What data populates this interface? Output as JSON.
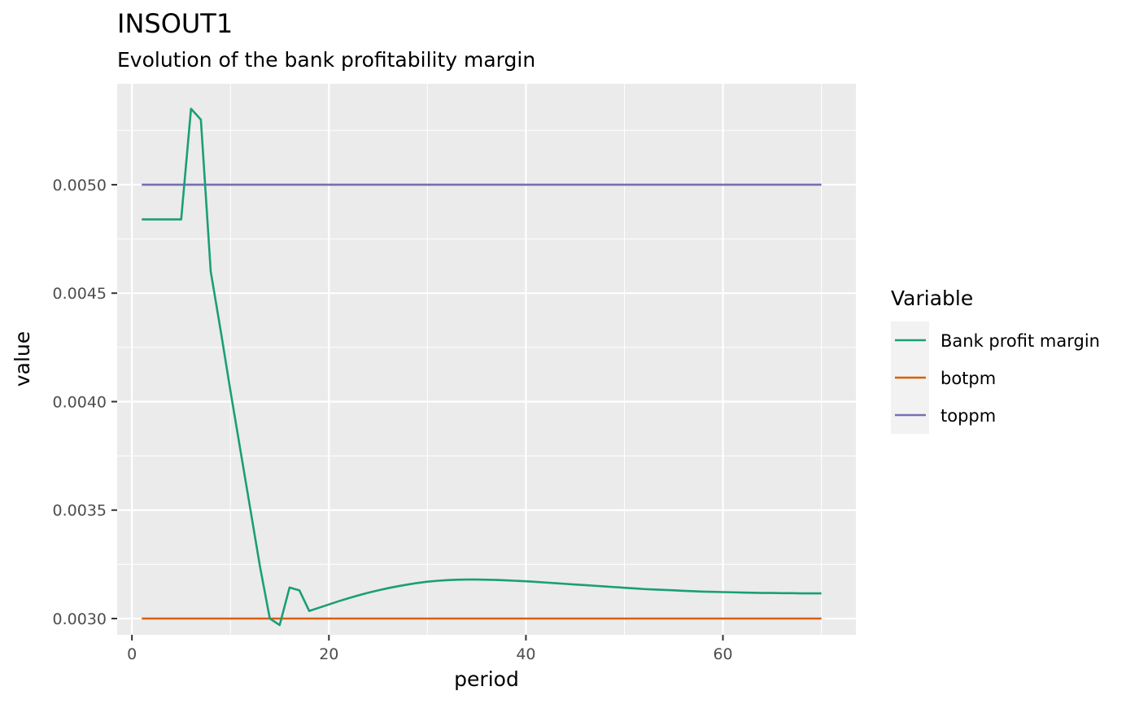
{
  "chart_data": {
    "type": "line",
    "title": "INSOUT1",
    "subtitle": "Evolution of the bank profitability margin",
    "xlabel": "period",
    "ylabel": "value",
    "xlim": [
      -1.5,
      73.5
    ],
    "ylim": [
      0.002925,
      0.005465
    ],
    "x_ticks": [
      0,
      20,
      40,
      60
    ],
    "x_tick_labels": [
      "0",
      "20",
      "40",
      "60"
    ],
    "y_ticks": [
      0.003,
      0.0035,
      0.004,
      0.0045,
      0.005
    ],
    "y_tick_labels": [
      "0.0030",
      "0.0035",
      "0.0040",
      "0.0045",
      "0.0050"
    ],
    "grid": true,
    "legend": {
      "title": "Variable",
      "position": "right"
    },
    "series": [
      {
        "name": "Bank profit margin",
        "color": "#1b9e77",
        "x": [
          1,
          2,
          3,
          4,
          5,
          6,
          7,
          8,
          9,
          10,
          11,
          12,
          13,
          14,
          15,
          16,
          17,
          18,
          19,
          20,
          21,
          22,
          23,
          24,
          25,
          26,
          27,
          28,
          29,
          30,
          31,
          32,
          33,
          34,
          35,
          36,
          37,
          38,
          39,
          40,
          41,
          42,
          43,
          44,
          45,
          46,
          47,
          48,
          49,
          50,
          51,
          52,
          53,
          54,
          55,
          56,
          57,
          58,
          59,
          60,
          61,
          62,
          63,
          64,
          65,
          66,
          67,
          68,
          69,
          70
        ],
        "y": [
          0.00484,
          0.00484,
          0.00484,
          0.00484,
          0.00484,
          0.00535,
          0.0053,
          0.0046,
          0.00433,
          0.00405,
          0.00378,
          0.00351,
          0.00324,
          0.003,
          0.00297,
          0.003143,
          0.00313,
          0.003035,
          0.00305,
          0.003065,
          0.00308,
          0.003094,
          0.003107,
          0.003119,
          0.00313,
          0.00314,
          0.003149,
          0.003157,
          0.003164,
          0.00317,
          0.003174,
          0.003177,
          0.003179,
          0.00318,
          0.00318,
          0.003179,
          0.003178,
          0.003176,
          0.003174,
          0.003172,
          0.003169,
          0.003166,
          0.003163,
          0.00316,
          0.003157,
          0.003154,
          0.003151,
          0.003148,
          0.003145,
          0.003142,
          0.003139,
          0.003136,
          0.003134,
          0.003132,
          0.00313,
          0.003128,
          0.003126,
          0.003124,
          0.003123,
          0.003122,
          0.003121,
          0.00312,
          0.003119,
          0.003118,
          0.003118,
          0.003117,
          0.003117,
          0.003116,
          0.003116,
          0.003116
        ]
      },
      {
        "name": "botpm",
        "color": "#d95f02",
        "x": [
          1,
          70
        ],
        "y": [
          0.003,
          0.003
        ]
      },
      {
        "name": "toppm",
        "color": "#7570b3",
        "x": [
          1,
          70
        ],
        "y": [
          0.005,
          0.005
        ]
      }
    ]
  }
}
